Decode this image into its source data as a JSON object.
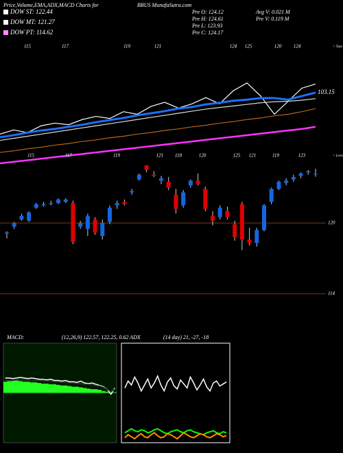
{
  "header": {
    "title": "Price,Volume,EMA,ADX,MACD Charts for",
    "symbol": "BBUS MunafaSutra.com",
    "legend": [
      {
        "label": "DOW ST: 122.44",
        "color": "#ffffff"
      },
      {
        "label": "DOW MT: 121.27",
        "color": "#ffffff"
      },
      {
        "label": "DOW PT: 114.62",
        "color": "#ff88ff"
      }
    ],
    "stats": [
      "Pre  O: 124.12",
      "Pre  H: 124.61",
      "Pre  L: 123.93",
      "Pre  C: 124.17"
    ],
    "volume": [
      "Avg V: 0.021 M",
      "Pre  V: 0.119 M"
    ]
  },
  "chart_data": [
    {
      "type": "line",
      "ylim": [
        90,
        113
      ],
      "top_labels": [
        "115",
        "117",
        "119",
        "121",
        "124",
        "125",
        "120",
        "124"
      ],
      "top_note": "< Tops",
      "series": [
        {
          "color": "#ffffff",
          "width": 1.2,
          "values": [
            95.2,
            96.0,
            95.5,
            96.8,
            97.3,
            97.0,
            98.0,
            98.6,
            98.2,
            99.5,
            99.0,
            100.5,
            101.3,
            100.2,
            101.0,
            102.2,
            101.0,
            103.5,
            105.0,
            102.5,
            99.0,
            101.5,
            104.0,
            104.8
          ]
        },
        {
          "color": "#1e6fff",
          "width": 3,
          "values": [
            94.6,
            95.0,
            95.5,
            95.9,
            96.2,
            96.6,
            97.0,
            97.5,
            97.9,
            98.3,
            98.8,
            99.2,
            99.6,
            100.1,
            100.4,
            100.9,
            101.2,
            101.6,
            101.8,
            102.1,
            102.1,
            101.8,
            102.5,
            103.15
          ]
        },
        {
          "color": "#dddddd",
          "width": 1.2,
          "values": [
            94.0,
            94.4,
            94.8,
            95.2,
            95.6,
            96.0,
            96.4,
            96.8,
            97.2,
            97.6,
            98.0,
            98.4,
            98.8,
            99.2,
            99.6,
            100.0,
            100.3,
            100.6,
            100.9,
            101.2,
            101.4,
            101.5,
            101.7,
            102.0
          ]
        },
        {
          "color": "#b5651d",
          "width": 1.2,
          "values": [
            91.7,
            92.0,
            92.4,
            92.7,
            93.1,
            93.4,
            93.8,
            94.1,
            94.5,
            94.8,
            95.2,
            95.5,
            95.9,
            96.2,
            96.6,
            96.9,
            97.3,
            97.6,
            98.0,
            98.3,
            98.7,
            99.0,
            99.5,
            100.1
          ]
        },
        {
          "color": "#ff33ff",
          "width": 2.5,
          "values": [
            89.6,
            89.9,
            90.2,
            90.5,
            90.8,
            91.1,
            91.4,
            91.7,
            92.0,
            92.3,
            92.6,
            92.9,
            93.2,
            93.5,
            93.8,
            94.1,
            94.4,
            94.7,
            95.0,
            95.3,
            95.6,
            95.9,
            96.2,
            96.6
          ]
        }
      ]
    },
    {
      "type": "candlestick",
      "ylim": [
        113.3,
        125.53
      ],
      "yticks": [
        120,
        114
      ],
      "grid_color": "#7a3a1a",
      "up_color": "#1565e0",
      "down_color": "#e00000",
      "low_labels": [
        "115",
        "117",
        "119",
        "121",
        "118",
        "120",
        "125",
        "121",
        "119",
        "123"
      ],
      "low_note": "< Lows",
      "open": [
        119.1,
        119.7,
        120.3,
        120.2,
        121.3,
        121.5,
        121.6,
        121.7,
        121.8,
        121.7,
        119.7,
        119.5,
        120.3,
        118.9,
        120.1,
        121.5,
        121.8,
        122.6,
        123.7,
        124.9,
        124.1,
        123.6,
        123.5,
        122.4,
        121.5,
        123.2,
        123.6,
        122.9,
        120.6,
        120.5,
        121.0,
        119.9,
        121.6,
        118.6,
        118.3,
        119.4,
        121.8,
        122.9,
        123.4,
        123.7,
        124.0,
        124.3,
        124.12
      ],
      "high": [
        119.3,
        120.1,
        120.8,
        121.0,
        121.7,
        121.8,
        121.9,
        122.1,
        122.1,
        121.9,
        120.2,
        120.8,
        120.5,
        120.3,
        121.5,
        121.9,
        122.0,
        122.9,
        124.2,
        124.9,
        124.4,
        124.0,
        123.9,
        122.9,
        122.8,
        123.7,
        124.2,
        123.1,
        121.0,
        121.5,
        121.4,
        120.2,
        121.8,
        119.6,
        119.6,
        121.6,
        123.0,
        123.6,
        123.8,
        124.1,
        124.3,
        124.5,
        124.61
      ],
      "low": [
        118.7,
        119.5,
        120.2,
        120.1,
        121.2,
        121.4,
        121.5,
        121.6,
        121.7,
        118.2,
        119.5,
        118.9,
        119.0,
        118.6,
        119.9,
        121.2,
        121.5,
        122.4,
        123.6,
        124.3,
        123.9,
        123.3,
        122.8,
        120.8,
        121.3,
        123.0,
        123.2,
        121.0,
        119.8,
        120.3,
        120.3,
        118.5,
        117.7,
        118.1,
        118.0,
        119.3,
        121.6,
        122.8,
        123.2,
        123.5,
        123.8,
        124.1,
        123.93
      ],
      "close": [
        119.2,
        120.0,
        120.6,
        120.9,
        121.6,
        121.6,
        121.7,
        122.0,
        122.0,
        118.4,
        120.0,
        120.6,
        119.2,
        120.0,
        121.3,
        121.7,
        121.6,
        122.7,
        124.1,
        124.5,
        124.0,
        123.8,
        123.0,
        121.2,
        122.6,
        123.6,
        123.3,
        121.2,
        120.2,
        121.3,
        120.5,
        118.8,
        118.6,
        118.3,
        119.4,
        121.5,
        122.9,
        123.5,
        123.6,
        123.9,
        124.2,
        124.4,
        124.17
      ]
    },
    {
      "type": "macd",
      "label": "MACD:",
      "params": "(12,26,9) 122.57, 122.25, 0.62 ADX",
      "ylim": [
        -4,
        4
      ],
      "background": "#001a00",
      "histogram": {
        "color": "#22ff22",
        "values": [
          0.9,
          0.95,
          1.0,
          1.0,
          0.95,
          0.9,
          0.9,
          0.85,
          0.85,
          0.8,
          0.75,
          0.75,
          0.7,
          0.7,
          0.65,
          0.6,
          0.6,
          0.55,
          0.5,
          0.5,
          0.45,
          0.4,
          0.35,
          0.3,
          0.3,
          0.25,
          0.15,
          0.1,
          -0.05,
          0.05
        ]
      },
      "series": [
        {
          "color": "#ffffff",
          "values": [
            1.2,
            1.2,
            1.15,
            1.2,
            1.25,
            1.2,
            1.15,
            1.2,
            1.15,
            1.1,
            1.1,
            1.05,
            1.1,
            1.0,
            1.0,
            0.95,
            1.0,
            0.9,
            0.9,
            0.85,
            0.95,
            0.8,
            0.75,
            0.8,
            0.7,
            0.6,
            0.5,
            0.3,
            -0.1,
            0.4
          ]
        },
        {
          "color": "#333333",
          "values": [
            1.0,
            1.0,
            1.0,
            1.05,
            1.05,
            1.05,
            1.05,
            1.0,
            1.0,
            1.0,
            0.95,
            0.95,
            0.95,
            0.9,
            0.9,
            0.85,
            0.85,
            0.8,
            0.8,
            0.75,
            0.75,
            0.7,
            0.7,
            0.65,
            0.6,
            0.55,
            0.45,
            0.3,
            0.1,
            0.3
          ]
        }
      ]
    },
    {
      "type": "adx",
      "params": "(14 day) 21, -27, -18",
      "ylim": [
        0,
        100
      ],
      "background": "#000000",
      "series": [
        {
          "color": "#ffffff",
          "values": [
            55,
            62,
            58,
            66,
            60,
            52,
            58,
            64,
            55,
            60,
            67,
            58,
            52,
            61,
            65,
            57,
            54,
            63,
            59,
            55,
            66,
            60,
            53,
            58,
            64,
            56,
            52,
            60,
            62,
            57,
            59,
            61
          ]
        },
        {
          "color": "#00ff00",
          "values": [
            10,
            12,
            14,
            12,
            11,
            13,
            12,
            10,
            11,
            13,
            14,
            12,
            10,
            9,
            11,
            12,
            13,
            11,
            10,
            12,
            13,
            11,
            10,
            9,
            8,
            10,
            11,
            12,
            10,
            9,
            11,
            10
          ]
        },
        {
          "color": "#ff8c00",
          "values": [
            5,
            8,
            6,
            4,
            7,
            9,
            6,
            5,
            8,
            10,
            7,
            5,
            6,
            9,
            8,
            6,
            4,
            7,
            10,
            8,
            6,
            5,
            7,
            9,
            8,
            6,
            5,
            7,
            9,
            8,
            6,
            7
          ]
        }
      ]
    }
  ]
}
